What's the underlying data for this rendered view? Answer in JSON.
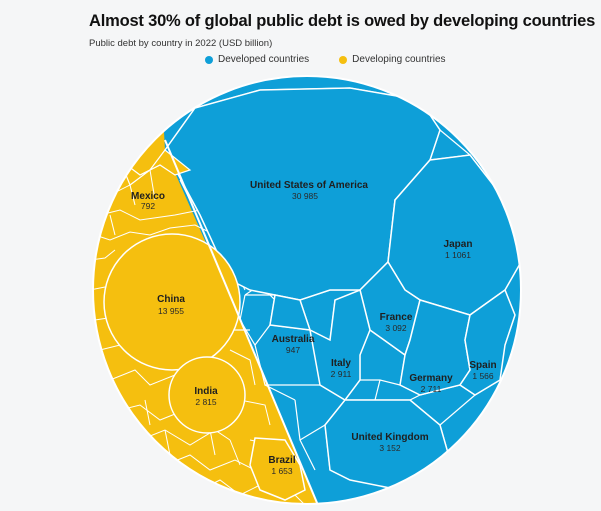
{
  "chart_data": {
    "type": "voronoi-treemap",
    "title": "Almost 30% of global public debt is owed by developing countries",
    "subtitle": "Public debt by country in 2022 (USD billion)",
    "legend": [
      {
        "name": "Developed countries",
        "color": "#0e9fd8"
      },
      {
        "name": "Developing countries",
        "color": "#f5bf0f"
      }
    ],
    "series": [
      {
        "name": "Developed countries",
        "color": "#0e9fd8",
        "points": [
          {
            "label": "United States of America",
            "value": "30 985"
          },
          {
            "label": "Japan",
            "value": "1 1061"
          },
          {
            "label": "France",
            "value": "3 092"
          },
          {
            "label": "Australia",
            "value": "947"
          },
          {
            "label": "Italy",
            "value": "2 911"
          },
          {
            "label": "Germany",
            "value": "2 711"
          },
          {
            "label": "Spain",
            "value": "1 566"
          },
          {
            "label": "United Kingdom",
            "value": "3 152"
          }
        ]
      },
      {
        "name": "Developing countries",
        "color": "#f5bf0f",
        "points": [
          {
            "label": "Mexico",
            "value": "792"
          },
          {
            "label": "China",
            "value": "13 955"
          },
          {
            "label": "India",
            "value": "2 815"
          },
          {
            "label": "Brazil",
            "value": "1 653"
          }
        ]
      }
    ]
  }
}
